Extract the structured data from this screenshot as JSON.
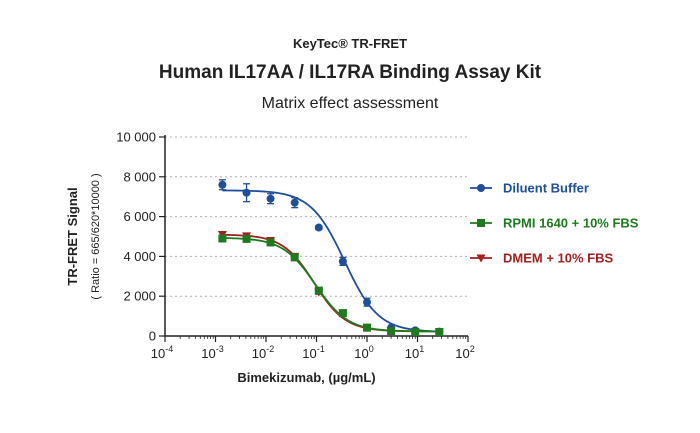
{
  "header": {
    "brand": "KeyTec® TR-FRET",
    "title": "Human IL17AA / IL17RA Binding Assay Kit",
    "subtitle": "Matrix effect assessment"
  },
  "chart_data": {
    "type": "scatter",
    "xscale": "log",
    "xlim": [
      0.0001,
      100
    ],
    "ylim": [
      0,
      10000
    ],
    "xlabel": "Bimekizumab, (µg/mL)",
    "ylabel": "TR-FRET Signal",
    "ylabel_sub": "( Ratio = 665/620*10000 )",
    "x_ticks": [
      {
        "value": 0.0001,
        "base": "10",
        "exp": "-4"
      },
      {
        "value": 0.001,
        "base": "10",
        "exp": "-3"
      },
      {
        "value": 0.01,
        "base": "10",
        "exp": "-2"
      },
      {
        "value": 0.1,
        "base": "10",
        "exp": "-1"
      },
      {
        "value": 1,
        "base": "10",
        "exp": "0"
      },
      {
        "value": 10,
        "base": "10",
        "exp": "1"
      },
      {
        "value": 100,
        "base": "10",
        "exp": "2"
      }
    ],
    "y_ticks": [
      {
        "value": 0,
        "label": "0"
      },
      {
        "value": 2000,
        "label": "2 000"
      },
      {
        "value": 4000,
        "label": "4 000"
      },
      {
        "value": 6000,
        "label": "6 000"
      },
      {
        "value": 8000,
        "label": "8 000"
      },
      {
        "value": 10000,
        "label": "10 000"
      }
    ],
    "grid": "horizontal dashed",
    "legend_position": "right",
    "x": [
      0.00137,
      0.00412,
      0.0123,
      0.037,
      0.111,
      0.333,
      1,
      3,
      9,
      27
    ],
    "series": [
      {
        "name": "Diluent Buffer",
        "color": "#1f4e9c",
        "marker": "circle",
        "values": [
          7600,
          7200,
          6900,
          6700,
          5450,
          3750,
          1700,
          420,
          280,
          220
        ],
        "errors": [
          250,
          450,
          250,
          250,
          100,
          200,
          200,
          60,
          40,
          40
        ],
        "fit": {
          "bottom": 200,
          "top": 7320,
          "ec50": 0.36,
          "hill": 1.3
        }
      },
      {
        "name": "RPMI 1640 + 10% FBS",
        "color": "#1e7a1e",
        "marker": "square",
        "values": [
          4900,
          4880,
          4700,
          3950,
          2280,
          1150,
          420,
          250,
          200,
          200
        ],
        "errors": [
          120,
          150,
          120,
          100,
          100,
          60,
          40,
          30,
          30,
          30
        ],
        "fit": {
          "bottom": 230,
          "top": 4940,
          "ec50": 0.095,
          "hill": 1.35
        }
      },
      {
        "name": "DMEM + 10% FBS",
        "color": "#a51f1f",
        "marker": "triangle-down",
        "values": [
          5100,
          5030,
          4800,
          4000,
          2200,
          1150,
          420,
          250,
          200,
          200
        ],
        "errors": [
          120,
          120,
          120,
          100,
          100,
          60,
          40,
          30,
          30,
          30
        ],
        "fit": {
          "bottom": 230,
          "top": 5100,
          "ec50": 0.09,
          "hill": 1.4
        }
      }
    ]
  }
}
